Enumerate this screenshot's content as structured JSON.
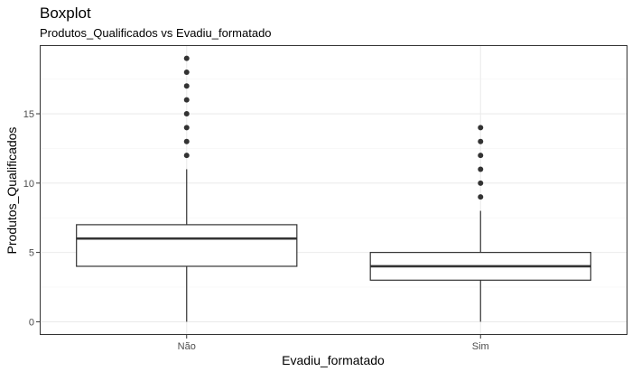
{
  "chart_data": {
    "type": "boxplot",
    "title": "Boxplot",
    "subtitle": "Produtos_Qualificados vs Evadiu_formatado",
    "xlabel": "Evadiu_formatado",
    "ylabel": "Produtos_Qualificados",
    "categories": [
      "Não",
      "Sim"
    ],
    "ylim": [
      -0.95,
      19.95
    ],
    "yticks": [
      0,
      5,
      10,
      15
    ],
    "grid": true,
    "boxes": [
      {
        "category": "Não",
        "whisker_low": 0,
        "q1": 4,
        "median": 6,
        "q3": 7,
        "whisker_high": 11,
        "outliers": [
          12,
          13,
          14,
          15,
          16,
          17,
          18,
          19
        ]
      },
      {
        "category": "Sim",
        "whisker_low": 0,
        "q1": 3,
        "median": 4,
        "q3": 5,
        "whisker_high": 8,
        "outliers": [
          9,
          10,
          11,
          12,
          13,
          14
        ]
      }
    ]
  }
}
